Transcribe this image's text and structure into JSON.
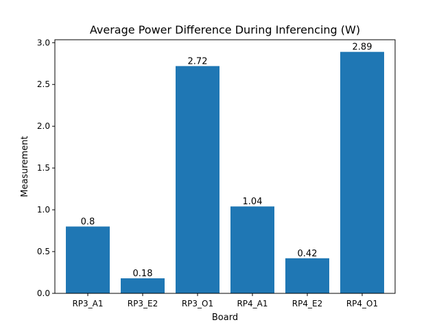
{
  "chart_data": {
    "type": "bar",
    "title": "Average Power Difference During Inferencing (W)",
    "xlabel": "Board",
    "ylabel": "Measurement",
    "categories": [
      "RP3_A1",
      "RP3_E2",
      "RP3_O1",
      "RP4_A1",
      "RP4_E2",
      "RP4_O1"
    ],
    "values": [
      0.8,
      0.18,
      2.72,
      1.04,
      0.42,
      2.89
    ],
    "data_labels": [
      "0.8",
      "0.18",
      "2.72",
      "1.04",
      "0.42",
      "2.89"
    ],
    "ylim": [
      0,
      3.035
    ],
    "yticks": [
      0.0,
      0.5,
      1.0,
      1.5,
      2.0,
      2.5,
      3.0
    ],
    "ytick_labels": [
      "0.0",
      "0.5",
      "1.0",
      "1.5",
      "2.0",
      "2.5",
      "3.0"
    ],
    "bar_color": "#1f77b4",
    "grid": false,
    "legend": null
  }
}
